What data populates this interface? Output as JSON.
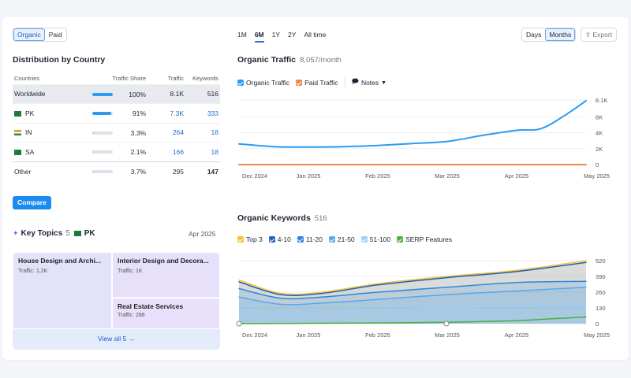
{
  "tabs": {
    "organic": "Organic",
    "paid": "Paid"
  },
  "distribution": {
    "title": "Distribution by Country",
    "headers": {
      "countries": "Countries",
      "share": "Traffic Share",
      "traffic": "Traffic",
      "keywords": "Keywords"
    },
    "rows": [
      {
        "country": "Worldwide",
        "share": "100%",
        "share_fraction": 1.0,
        "traffic": "8.1K",
        "keywords": "516"
      },
      {
        "country": "PK",
        "share": "91%",
        "share_fraction": 0.91,
        "traffic": "7.3K",
        "keywords": "333",
        "flag_color": "#1e7a3b"
      },
      {
        "country": "IN",
        "share": "3.3%",
        "share_fraction": 0.033,
        "traffic": "264",
        "keywords": "18",
        "flag_color": "#f08a24"
      },
      {
        "country": "SA",
        "share": "2.1%",
        "share_fraction": 0.021,
        "traffic": "166",
        "keywords": "18",
        "flag_color": "#1e7a3b"
      },
      {
        "country": "Other",
        "share": "3.7%",
        "share_fraction": 0.037,
        "traffic": "295",
        "keywords": "147"
      }
    ],
    "compare_label": "Compare"
  },
  "key_topics": {
    "title": "Key Topics",
    "count": "5",
    "country": "PK",
    "date": "Apr 2025",
    "topics": [
      {
        "name": "House Design and Archi...",
        "traffic": "Traffic: 1.2K"
      },
      {
        "name": "Interior Design and Decora...",
        "traffic": "Traffic: 1K"
      },
      {
        "name": "Real Estate Services",
        "traffic": "Traffic: 288"
      }
    ],
    "view_all": "View all 5 →"
  },
  "ranges": [
    "1M",
    "6M",
    "1Y",
    "2Y",
    "All time"
  ],
  "granularity": {
    "days": "Days",
    "months": "Months"
  },
  "export_label": "Export",
  "organic_traffic": {
    "title": "Organic Traffic",
    "subtitle": "8,057/month",
    "legend": {
      "organic": "Organic Traffic",
      "paid": "Paid Traffic",
      "notes": "Notes"
    }
  },
  "organic_keywords": {
    "title": "Organic Keywords",
    "subtitle": "516",
    "legend": [
      {
        "label": "Top 3",
        "color": "#f2c230"
      },
      {
        "label": "4-10",
        "color": "#1f5fbf"
      },
      {
        "label": "11-20",
        "color": "#2b86e0"
      },
      {
        "label": "21-50",
        "color": "#55a8ef"
      },
      {
        "label": "51-100",
        "color": "#9ecff7"
      },
      {
        "label": "SERP Features",
        "color": "#4caf3a"
      }
    ]
  },
  "colors": {
    "organic": "#2b9bf2",
    "paid": "#f0884a",
    "accent": "#1a8cf0"
  },
  "chart_data": [
    {
      "type": "line",
      "title": "Organic Traffic",
      "x": [
        "Dec 2024",
        "Jan 2025",
        "Feb 2025",
        "Mar 2025",
        "Apr 2025",
        "May 2025"
      ],
      "ytick_labels": [
        "8.1K",
        "6K",
        "4K",
        "2K",
        "0"
      ],
      "yticks": [
        8100,
        6000,
        4000,
        2000,
        0
      ],
      "ylim": [
        0,
        8100
      ],
      "series": [
        {
          "name": "Organic Traffic",
          "color": "#2b9bf2",
          "values": [
            [
              0,
              2600
            ],
            [
              0.5,
              2250
            ],
            [
              1,
              2200
            ],
            [
              1.5,
              2250
            ],
            [
              2,
              2400
            ],
            [
              2.5,
              2650
            ],
            [
              3,
              2900
            ],
            [
              3.5,
              3650
            ],
            [
              4,
              4300
            ],
            [
              4.35,
              4500
            ],
            [
              4.7,
              6200
            ],
            [
              5,
              8000
            ]
          ]
        },
        {
          "name": "Paid Traffic",
          "color": "#f0884a",
          "values": [
            [
              0,
              0
            ],
            [
              5,
              0
            ]
          ]
        }
      ],
      "grid": true
    },
    {
      "type": "area",
      "title": "Organic Keywords",
      "x": [
        "Dec 2024",
        "Jan 2025",
        "Feb 2025",
        "Mar 2025",
        "Apr 2025",
        "May 2025"
      ],
      "ytick_labels": [
        "520",
        "390",
        "260",
        "130",
        "0"
      ],
      "yticks": [
        520,
        390,
        260,
        130,
        0
      ],
      "ylim": [
        0,
        520
      ],
      "series": [
        {
          "name": "Top 3",
          "color": "#f2c230",
          "values": [
            [
              0,
              360
            ],
            [
              0.6,
              250
            ],
            [
              1.2,
              260
            ],
            [
              2,
              330
            ],
            [
              3,
              390
            ],
            [
              4,
              440
            ],
            [
              5,
              520
            ]
          ]
        },
        {
          "name": "4-10",
          "color": "#1f5fbf",
          "values": [
            [
              0,
              345
            ],
            [
              0.6,
              240
            ],
            [
              1.2,
              250
            ],
            [
              2,
              320
            ],
            [
              3,
              380
            ],
            [
              4,
              430
            ],
            [
              5,
              505
            ]
          ]
        },
        {
          "name": "11-20",
          "color": "#2b86e0",
          "values": [
            [
              0,
              290
            ],
            [
              0.6,
              210
            ],
            [
              1.2,
              220
            ],
            [
              2,
              260
            ],
            [
              3,
              300
            ],
            [
              4,
              340
            ],
            [
              5,
              350
            ]
          ]
        },
        {
          "name": "21-50",
          "color": "#55a8ef",
          "values": [
            [
              0,
              220
            ],
            [
              0.6,
              160
            ],
            [
              1.2,
              170
            ],
            [
              2,
              200
            ],
            [
              3,
              240
            ],
            [
              4,
              270
            ],
            [
              5,
              300
            ]
          ]
        },
        {
          "name": "51-100",
          "color": "#9ecff7",
          "values": [
            [
              0,
              120
            ],
            [
              0.6,
              90
            ],
            [
              1.2,
              95
            ],
            [
              2,
              110
            ],
            [
              3,
              130
            ],
            [
              4,
              150
            ],
            [
              5,
              160
            ]
          ]
        },
        {
          "name": "SERP Features",
          "color": "#4caf3a",
          "values": [
            [
              0,
              0
            ],
            [
              2,
              6
            ],
            [
              3,
              12
            ],
            [
              4,
              25
            ],
            [
              4.5,
              40
            ],
            [
              5,
              55
            ]
          ]
        }
      ],
      "grid": true
    }
  ]
}
